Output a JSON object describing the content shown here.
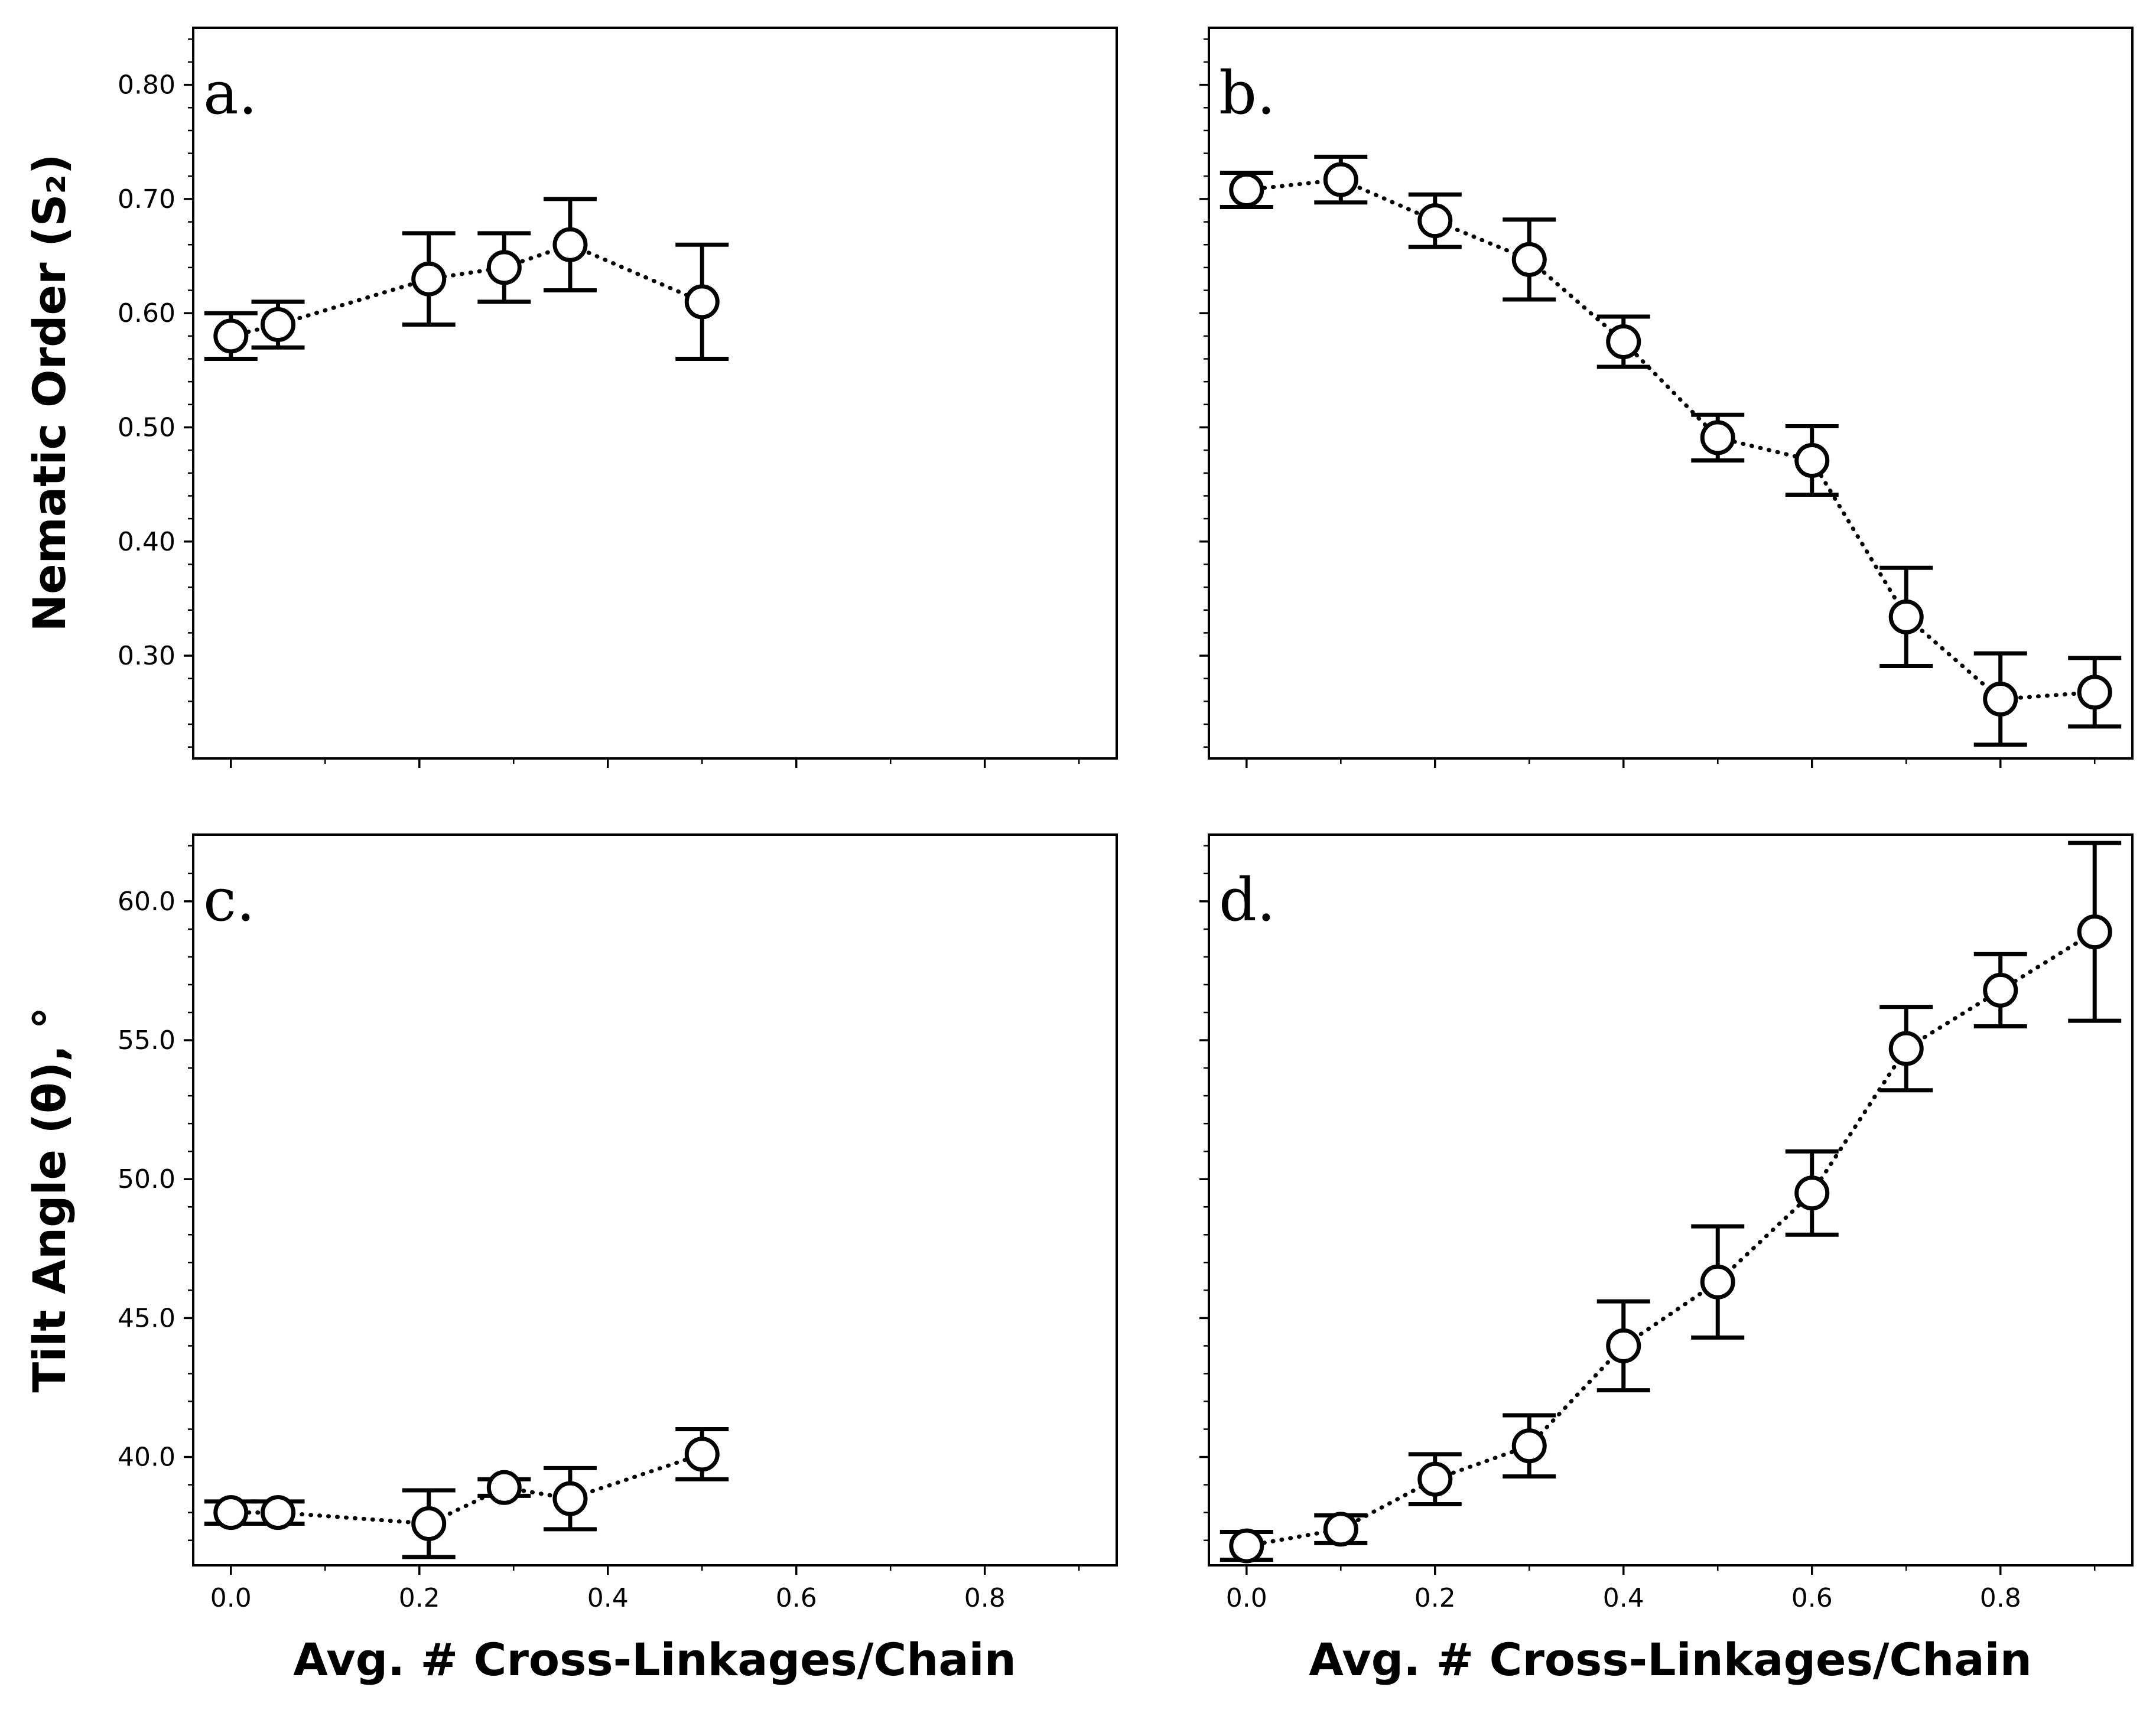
{
  "chart_data": [
    {
      "type": "scatter",
      "panel_label": "a.",
      "ylabel": "Nematic Order (S₂)",
      "xlabel": "",
      "xlim": [
        -0.04,
        0.94
      ],
      "ylim": [
        0.21,
        0.85
      ],
      "yticks": [
        0.3,
        0.4,
        0.5,
        0.6,
        0.7,
        0.8
      ],
      "ytick_labels": [
        "0.30",
        "0.40",
        "0.50",
        "0.60",
        "0.70",
        "0.80"
      ],
      "xticks": [
        0.0,
        0.2,
        0.4,
        0.6,
        0.8
      ],
      "xtick_labels": [],
      "grid": false,
      "series": [
        {
          "x": [
            0.0,
            0.05,
            0.21,
            0.29,
            0.36,
            0.5
          ],
          "y": [
            0.58,
            0.59,
            0.63,
            0.64,
            0.66,
            0.61
          ],
          "yerr": [
            0.02,
            0.02,
            0.04,
            0.03,
            0.04,
            0.05
          ]
        }
      ]
    },
    {
      "type": "scatter",
      "panel_label": "b.",
      "ylabel": "",
      "xlabel": "",
      "xlim": [
        -0.04,
        0.94
      ],
      "ylim": [
        0.21,
        0.85
      ],
      "yticks": [
        0.3,
        0.4,
        0.5,
        0.6,
        0.7,
        0.8
      ],
      "ytick_labels": [],
      "xticks": [
        0.0,
        0.2,
        0.4,
        0.6,
        0.8
      ],
      "xtick_labels": [],
      "grid": false,
      "series": [
        {
          "x": [
            0.0,
            0.1,
            0.2,
            0.3,
            0.4,
            0.5,
            0.6,
            0.7,
            0.8,
            0.9
          ],
          "y": [
            0.708,
            0.717,
            0.681,
            0.647,
            0.575,
            0.491,
            0.471,
            0.334,
            0.262,
            0.268
          ],
          "yerr": [
            0.015,
            0.02,
            0.023,
            0.035,
            0.022,
            0.02,
            0.03,
            0.043,
            0.04,
            0.03
          ]
        }
      ]
    },
    {
      "type": "scatter",
      "panel_label": "c.",
      "ylabel": "Tilt Angle (θ), °",
      "xlabel": "Avg. # Cross-Linkages/Chain",
      "xlim": [
        -0.04,
        0.94
      ],
      "ylim": [
        36.1,
        62.4
      ],
      "yticks": [
        40.0,
        45.0,
        50.0,
        55.0,
        60.0
      ],
      "ytick_labels": [
        "40.0",
        "45.0",
        "50.0",
        "55.0",
        "60.0"
      ],
      "xticks": [
        0.0,
        0.2,
        0.4,
        0.6,
        0.8
      ],
      "xtick_labels": [
        "0.0",
        "0.2",
        "0.4",
        "0.6",
        "0.8"
      ],
      "grid": false,
      "series": [
        {
          "x": [
            0.0,
            0.05,
            0.21,
            0.29,
            0.36,
            0.5
          ],
          "y": [
            38.0,
            38.0,
            37.6,
            38.9,
            38.5,
            40.1
          ],
          "yerr": [
            0.4,
            0.4,
            1.2,
            0.3,
            1.1,
            0.9
          ]
        }
      ]
    },
    {
      "type": "scatter",
      "panel_label": "d.",
      "ylabel": "",
      "xlabel": "Avg. # Cross-Linkages/Chain",
      "xlim": [
        -0.04,
        0.94
      ],
      "ylim": [
        36.1,
        62.4
      ],
      "yticks": [
        40.0,
        45.0,
        50.0,
        55.0,
        60.0
      ],
      "ytick_labels": [],
      "xticks": [
        0.0,
        0.2,
        0.4,
        0.6,
        0.8
      ],
      "xtick_labels": [
        "0.0",
        "0.2",
        "0.4",
        "0.6",
        "0.8"
      ],
      "grid": false,
      "series": [
        {
          "x": [
            0.0,
            0.1,
            0.2,
            0.3,
            0.4,
            0.5,
            0.6,
            0.7,
            0.8,
            0.9
          ],
          "y": [
            36.8,
            37.4,
            39.2,
            40.4,
            44.0,
            46.3,
            49.5,
            54.7,
            56.8,
            58.9
          ],
          "yerr": [
            0.5,
            0.5,
            0.9,
            1.1,
            1.6,
            2.0,
            1.5,
            1.5,
            1.3,
            3.2
          ]
        }
      ]
    }
  ]
}
